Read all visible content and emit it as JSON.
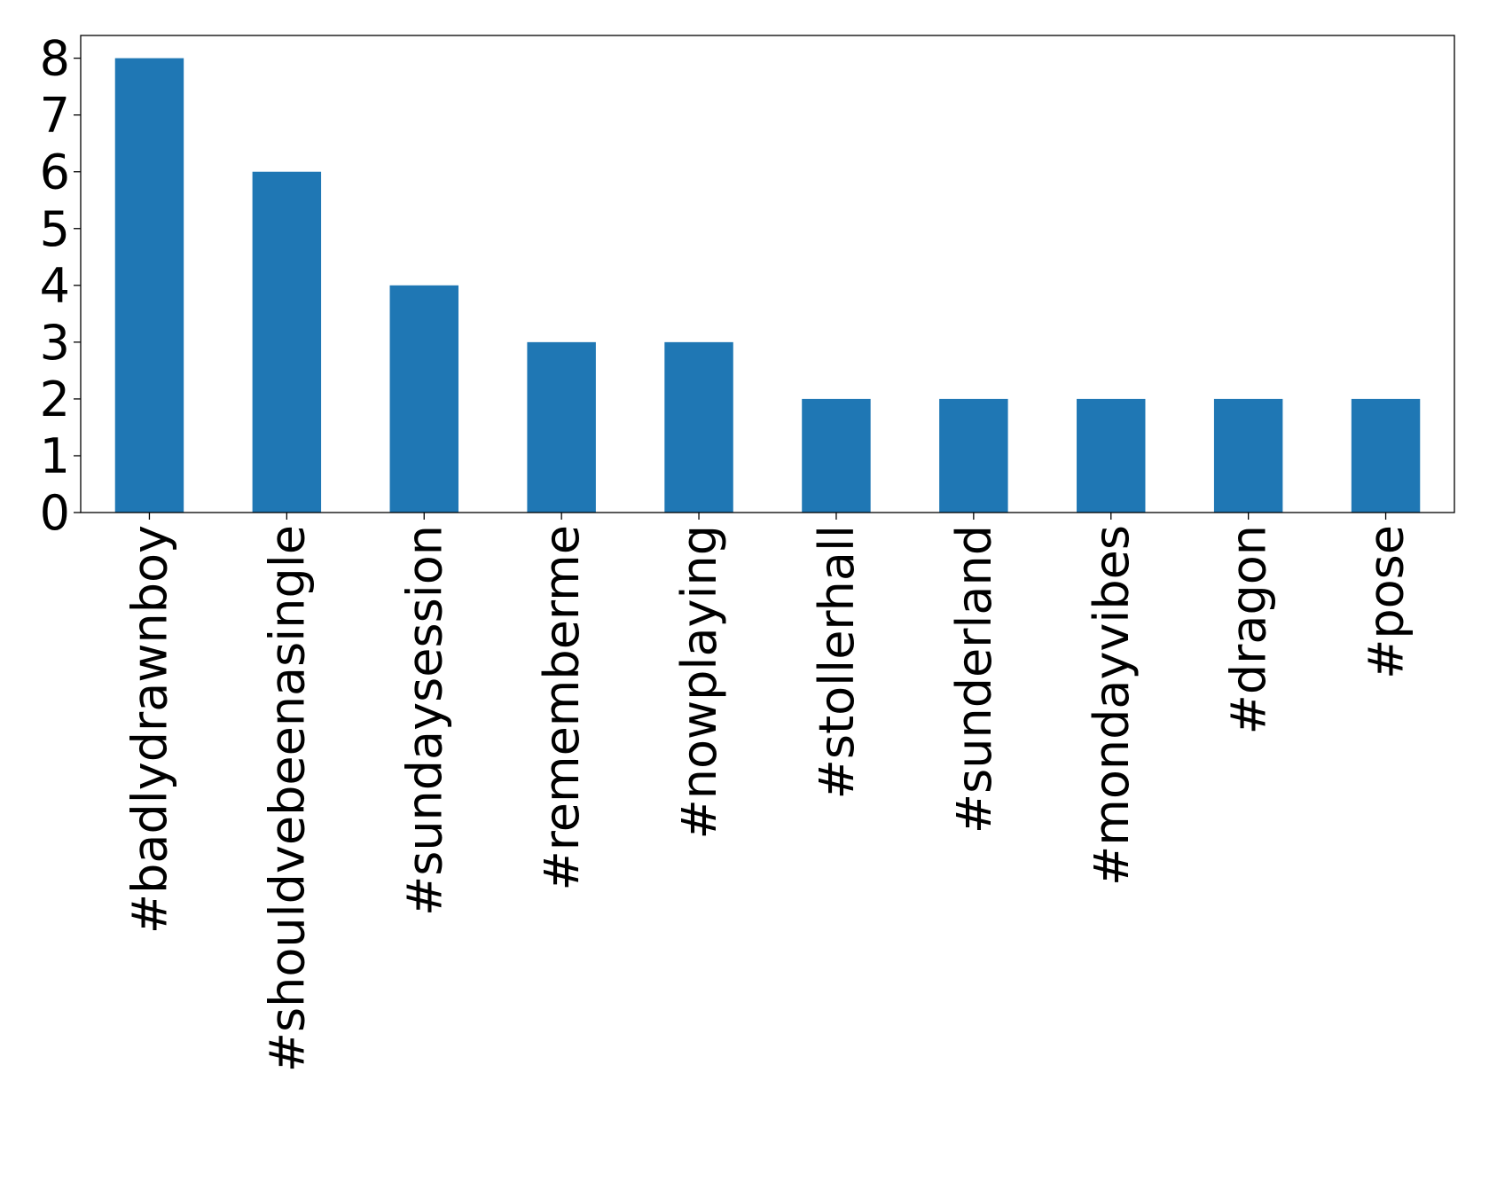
{
  "chart_data": {
    "type": "bar",
    "categories": [
      "#badlydrawnboy",
      "#shouldvebeenasingle",
      "#sundaysession",
      "#rememberme",
      "#nowplaying",
      "#stollerhall",
      "#sunderland",
      "#mondayvibes",
      "#dragon",
      "#pose"
    ],
    "values": [
      8,
      6,
      4,
      3,
      3,
      2,
      2,
      2,
      2,
      2
    ],
    "color": "#1f77b4",
    "ylim": [
      0,
      8.4
    ],
    "yticks": [
      0,
      1,
      2,
      3,
      4,
      5,
      6,
      7,
      8
    ],
    "grid": false
  }
}
